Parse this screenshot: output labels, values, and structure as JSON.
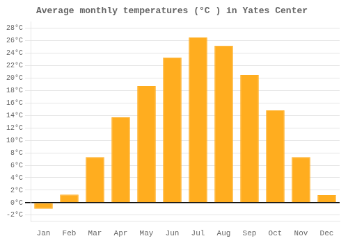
{
  "chart_data": {
    "type": "bar",
    "title": "Average monthly temperatures (°C ) in Yates Center",
    "categories": [
      "Jan",
      "Feb",
      "Mar",
      "Apr",
      "May",
      "Jun",
      "Jul",
      "Aug",
      "Sep",
      "Oct",
      "Nov",
      "Dec"
    ],
    "values": [
      -1.0,
      1.3,
      7.3,
      13.7,
      18.7,
      23.3,
      26.5,
      25.2,
      20.5,
      14.8,
      7.3,
      1.2
    ],
    "color": "#FFAD1F",
    "ylim": [
      -3,
      29
    ],
    "yticks": [
      {
        "value": -2,
        "label": "-2°C"
      },
      {
        "value": 0,
        "label": "0°C"
      },
      {
        "value": 2,
        "label": "2°C"
      },
      {
        "value": 4,
        "label": "4°C"
      },
      {
        "value": 6,
        "label": "6°C"
      },
      {
        "value": 8,
        "label": "8°C"
      },
      {
        "value": 10,
        "label": "10°C"
      },
      {
        "value": 12,
        "label": "12°C"
      },
      {
        "value": 14,
        "label": "14°C"
      },
      {
        "value": 16,
        "label": "16°C"
      },
      {
        "value": 18,
        "label": "18°C"
      },
      {
        "value": 20,
        "label": "20°C"
      },
      {
        "value": 22,
        "label": "22°C"
      },
      {
        "value": 24,
        "label": "24°C"
      },
      {
        "value": 26,
        "label": "26°C"
      },
      {
        "value": 28,
        "label": "28°C"
      }
    ],
    "grid": true
  }
}
